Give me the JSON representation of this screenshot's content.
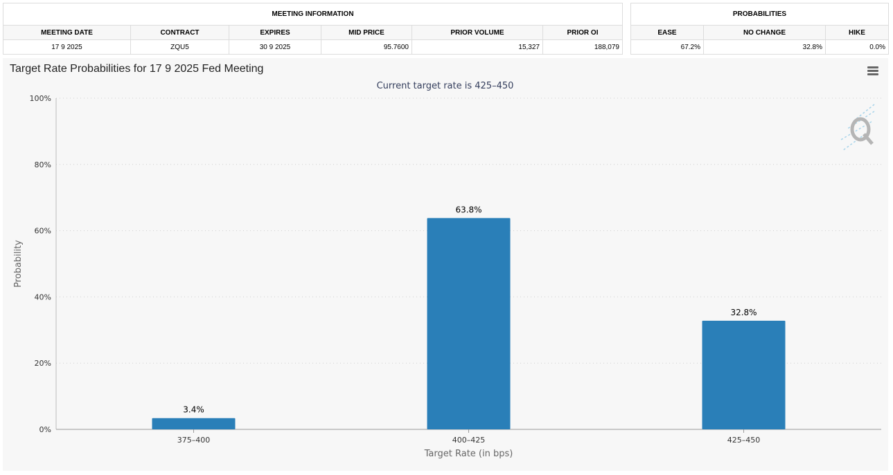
{
  "meeting_info": {
    "title": "MEETING INFORMATION",
    "headers": [
      "MEETING DATE",
      "CONTRACT",
      "EXPIRES",
      "MID PRICE",
      "PRIOR VOLUME",
      "PRIOR OI"
    ],
    "values": [
      "17 9 2025",
      "ZQU5",
      "30 9 2025",
      "95.7600",
      "15,327",
      "188,079"
    ]
  },
  "probabilities": {
    "title": "PROBABILITIES",
    "headers": [
      "EASE",
      "NO CHANGE",
      "HIKE"
    ],
    "values": [
      "67.2%",
      "32.8%",
      "0.0%"
    ]
  },
  "colors": {
    "bar": "#2a7fb8",
    "axis_text": "#333333",
    "subtitle": "#333d5c",
    "grid": "#cfcfcf"
  },
  "icons": [
    "menu-icon",
    "watermark-q-icon"
  ],
  "chart_data": {
    "type": "bar",
    "title": "Target Rate Probabilities for 17 9 2025 Fed Meeting",
    "subtitle": "Current target rate is 425–450",
    "xlabel": "Target Rate (in bps)",
    "ylabel": "Probability",
    "categories": [
      "375–400",
      "400–425",
      "425–450"
    ],
    "values": [
      3.4,
      63.8,
      32.8
    ],
    "data_labels": [
      "3.4%",
      "63.8%",
      "32.8%"
    ],
    "ylim": [
      0,
      100
    ],
    "yticks": [
      0,
      20,
      40,
      60,
      80,
      100
    ],
    "ytick_labels": [
      "0%",
      "20%",
      "40%",
      "60%",
      "80%",
      "100%"
    ],
    "grid": true,
    "legend": "none"
  }
}
